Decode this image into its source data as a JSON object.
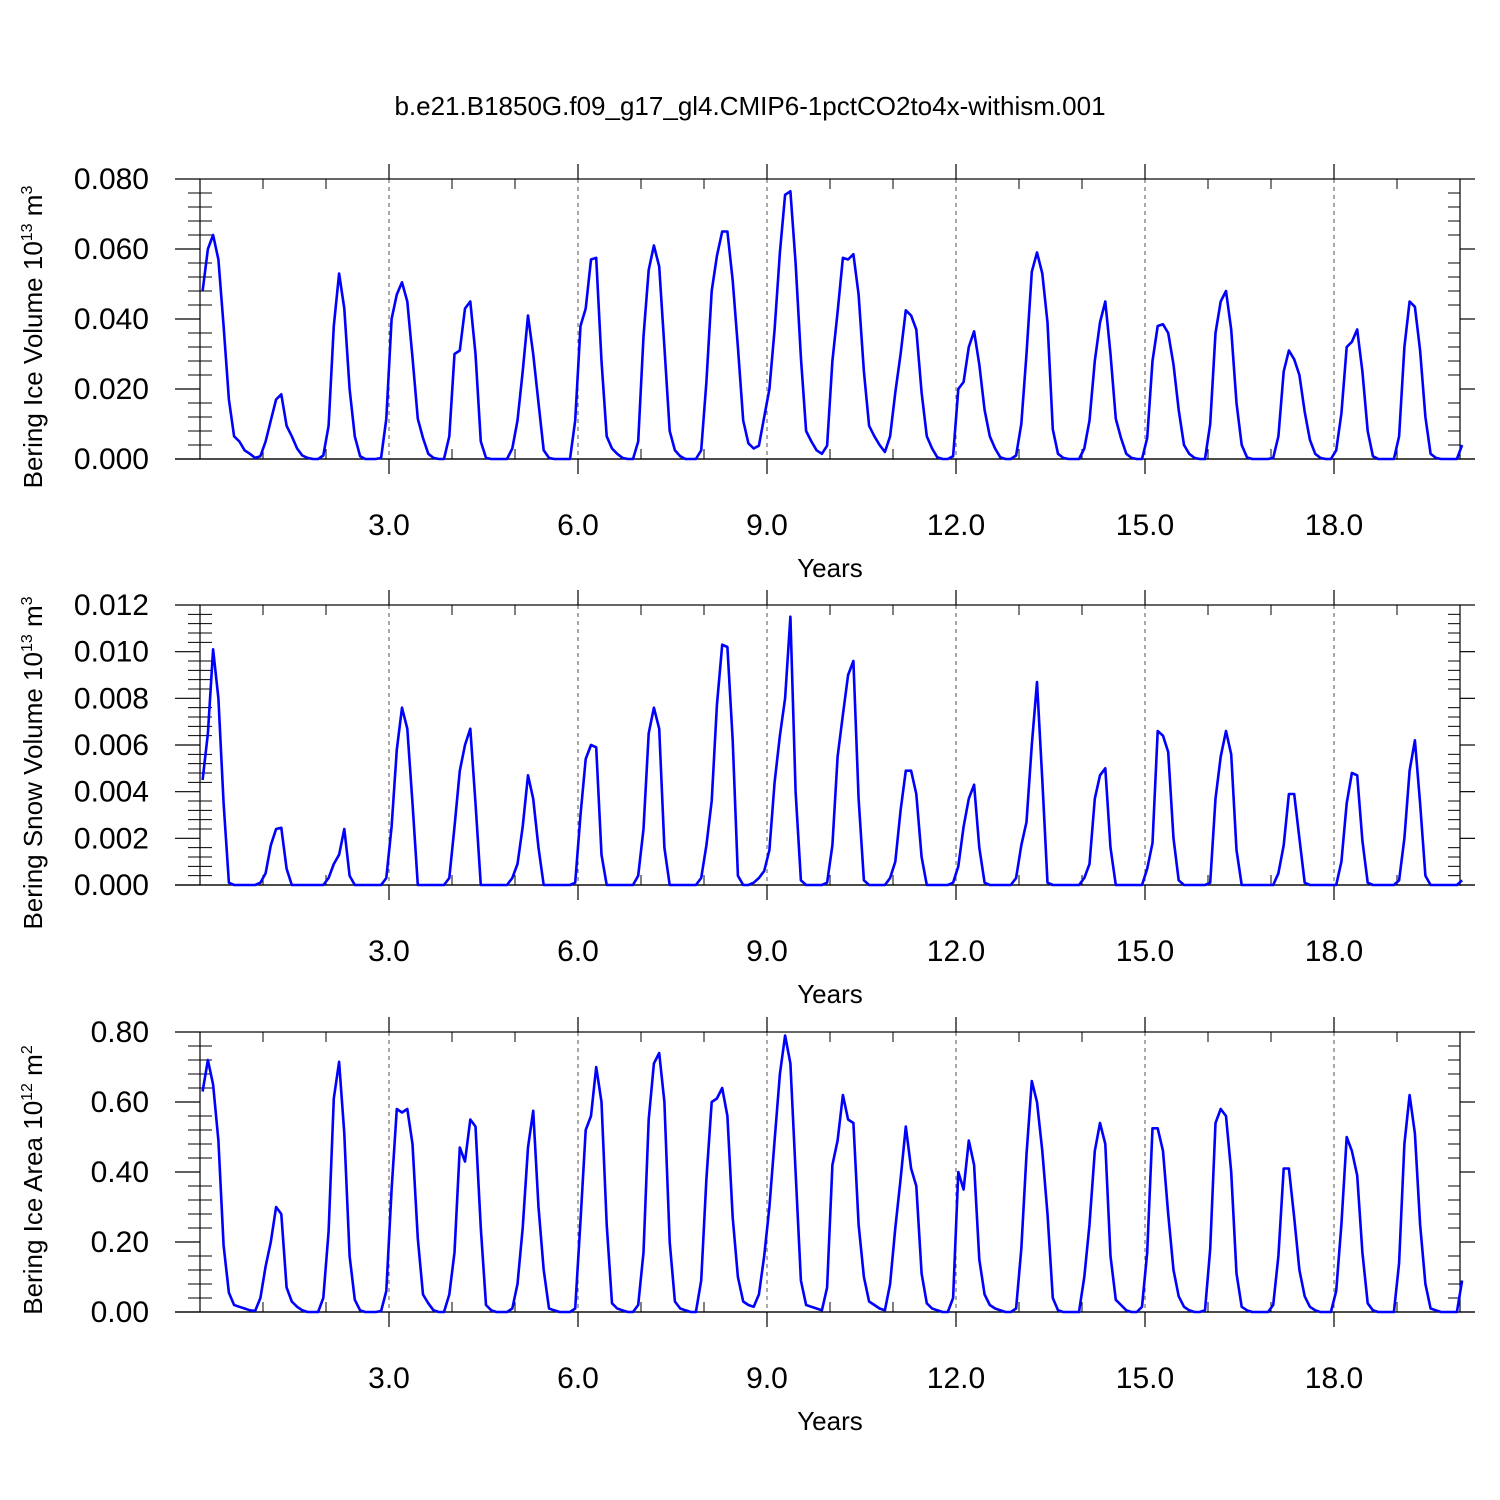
{
  "figure_title": "b.e21.B1850G.f09_g17_gl4.CMIP6-1pctCO2to4x-withism.001",
  "line_color": "#0000ff",
  "chart_data": [
    {
      "type": "line",
      "ylabel": "Bering Ice Volume 10",
      "ylabel_exp": "13",
      "ylabel_unit": " m",
      "ylabel_unit_exp": "3",
      "xlabel": "Years",
      "xlim": [
        0,
        20
      ],
      "ylim": [
        0,
        0.08
      ],
      "x_ticks": [
        3,
        6,
        9,
        12,
        15,
        18
      ],
      "x_tick_labels": [
        "3.0",
        "6.0",
        "9.0",
        "12.0",
        "15.0",
        "18.0"
      ],
      "y_ticks": [
        0,
        0.02,
        0.04,
        0.06,
        0.08
      ],
      "y_tick_labels": [
        "0.000",
        "0.020",
        "0.040",
        "0.060",
        "0.080"
      ],
      "grid": "dashed vertical at major x ticks",
      "series": [
        {
          "start_x": 0.0417,
          "step": 0.0833,
          "values": [
            0.048,
            0.06,
            0.064,
            0.057,
            0.038,
            0.017,
            0.0065,
            0.005,
            0.0025,
            0.0015,
            0.0003,
            0.0008,
            0.005,
            0.011,
            0.017,
            0.0185,
            0.0095,
            0.0065,
            0.003,
            0.001,
            0.0003,
            0.0,
            0.0,
            0.001,
            0.0095,
            0.038,
            0.053,
            0.043,
            0.02,
            0.0065,
            0.0008,
            0.0,
            0.0,
            0.0,
            0.0003,
            0.0115,
            0.04,
            0.047,
            0.0505,
            0.045,
            0.029,
            0.0115,
            0.006,
            0.0015,
            0.0003,
            0.0,
            0.0,
            0.0065,
            0.03,
            0.031,
            0.043,
            0.045,
            0.03,
            0.005,
            0.0003,
            0.0,
            0.0,
            0.0,
            0.0,
            0.003,
            0.011,
            0.025,
            0.041,
            0.03,
            0.016,
            0.0025,
            0.0003,
            0.0,
            0.0,
            0.0,
            0.0,
            0.011,
            0.038,
            0.043,
            0.057,
            0.0575,
            0.028,
            0.0065,
            0.003,
            0.0015,
            0.0003,
            0.0,
            0.0,
            0.005,
            0.035,
            0.054,
            0.061,
            0.055,
            0.032,
            0.008,
            0.0025,
            0.0008,
            0.0,
            0.0,
            0.0,
            0.0025,
            0.022,
            0.048,
            0.058,
            0.065,
            0.065,
            0.051,
            0.032,
            0.011,
            0.0045,
            0.003,
            0.0038,
            0.012,
            0.02,
            0.037,
            0.059,
            0.0755,
            0.0765,
            0.056,
            0.029,
            0.008,
            0.005,
            0.0025,
            0.0015,
            0.0038,
            0.028,
            0.042,
            0.0575,
            0.057,
            0.0585,
            0.047,
            0.025,
            0.0095,
            0.0065,
            0.004,
            0.002,
            0.0065,
            0.019,
            0.03,
            0.0425,
            0.041,
            0.037,
            0.019,
            0.0065,
            0.003,
            0.0005,
            0.0,
            0.0,
            0.0008,
            0.02,
            0.022,
            0.032,
            0.0365,
            0.027,
            0.014,
            0.0065,
            0.003,
            0.0005,
            0.0,
            0.0,
            0.001,
            0.01,
            0.03,
            0.0535,
            0.059,
            0.053,
            0.039,
            0.0085,
            0.0015,
            0.0003,
            0.0,
            0.0,
            0.0,
            0.003,
            0.011,
            0.028,
            0.039,
            0.045,
            0.03,
            0.0115,
            0.006,
            0.0015,
            0.0003,
            0.0,
            0.0,
            0.006,
            0.028,
            0.038,
            0.0385,
            0.036,
            0.027,
            0.014,
            0.004,
            0.0015,
            0.0003,
            0.0,
            0.0,
            0.01,
            0.036,
            0.045,
            0.048,
            0.037,
            0.016,
            0.004,
            0.0005,
            0.0,
            0.0,
            0.0,
            0.0,
            0.0003,
            0.0065,
            0.025,
            0.031,
            0.0285,
            0.024,
            0.0135,
            0.0055,
            0.0015,
            0.0003,
            0.0,
            0.0,
            0.0025,
            0.013,
            0.032,
            0.0335,
            0.037,
            0.025,
            0.008,
            0.0008,
            0.0,
            0.0,
            0.0,
            0.0,
            0.0065,
            0.032,
            0.045,
            0.0435,
            0.031,
            0.012,
            0.0015,
            0.0003,
            0.0,
            0.0,
            0.0,
            0.0,
            0.004
          ]
        }
      ]
    },
    {
      "type": "line",
      "ylabel": "Bering Snow Volume 10",
      "ylabel_exp": "13",
      "ylabel_unit": " m",
      "ylabel_unit_exp": "3",
      "xlabel": "Years",
      "xlim": [
        0,
        20
      ],
      "ylim": [
        0,
        0.012
      ],
      "x_ticks": [
        3,
        6,
        9,
        12,
        15,
        18
      ],
      "x_tick_labels": [
        "3.0",
        "6.0",
        "9.0",
        "12.0",
        "15.0",
        "18.0"
      ],
      "y_ticks": [
        0,
        0.002,
        0.004,
        0.006,
        0.008,
        0.01,
        0.012
      ],
      "y_tick_labels": [
        "0.000",
        "0.002",
        "0.004",
        "0.006",
        "0.008",
        "0.010",
        "0.012"
      ],
      "grid": "dashed vertical at major x ticks",
      "series": [
        {
          "start_x": 0.0417,
          "step": 0.0833,
          "values": [
            0.0045,
            0.0065,
            0.0101,
            0.008,
            0.0035,
            0.0001,
            0.0,
            0.0,
            0.0,
            0.0,
            0.0,
            0.0001,
            0.0005,
            0.0017,
            0.0024,
            0.00245,
            0.0007,
            0.0,
            0.0,
            0.0,
            0.0,
            0.0,
            0.0,
            0.0,
            0.0003,
            0.0009,
            0.0013,
            0.0024,
            0.0004,
            0.0,
            0.0,
            0.0,
            0.0,
            0.0,
            0.0,
            0.0003,
            0.0025,
            0.0058,
            0.0076,
            0.0067,
            0.0035,
            0.0,
            0.0,
            0.0,
            0.0,
            0.0,
            0.0,
            0.0003,
            0.0025,
            0.0049,
            0.006,
            0.0067,
            0.0035,
            0.0,
            0.0,
            0.0,
            0.0,
            0.0,
            0.0,
            0.0003,
            0.0009,
            0.0025,
            0.0047,
            0.0037,
            0.0016,
            0.0,
            0.0,
            0.0,
            0.0,
            0.0,
            0.0,
            0.0001,
            0.003,
            0.0054,
            0.006,
            0.0059,
            0.0013,
            0.0,
            0.0,
            0.0,
            0.0,
            0.0,
            0.0,
            0.0004,
            0.0024,
            0.0065,
            0.0076,
            0.0067,
            0.0016,
            0.0,
            0.0,
            0.0,
            0.0,
            0.0,
            0.0,
            0.0003,
            0.0017,
            0.0036,
            0.0077,
            0.0103,
            0.0102,
            0.0062,
            0.0004,
            0.0,
            0.0,
            0.0001,
            0.0003,
            0.0006,
            0.0015,
            0.0044,
            0.0064,
            0.008,
            0.0115,
            0.004,
            0.0002,
            0.0,
            0.0,
            0.0,
            0.0,
            0.0001,
            0.0017,
            0.0055,
            0.0073,
            0.009,
            0.0096,
            0.0037,
            0.0002,
            0.0,
            0.0,
            0.0,
            0.0,
            0.0003,
            0.001,
            0.0032,
            0.0049,
            0.0049,
            0.0039,
            0.0012,
            0.0,
            0.0,
            0.0,
            0.0,
            0.0,
            0.0001,
            0.0008,
            0.0025,
            0.0037,
            0.0043,
            0.0016,
            0.0001,
            0.0,
            0.0,
            0.0,
            0.0,
            0.0,
            0.0003,
            0.0017,
            0.0027,
            0.006,
            0.0087,
            0.0045,
            0.0001,
            0.0,
            0.0,
            0.0,
            0.0,
            0.0,
            0.0,
            0.0003,
            0.0009,
            0.0037,
            0.0047,
            0.005,
            0.0016,
            0.0,
            0.0,
            0.0,
            0.0,
            0.0,
            0.0,
            0.0007,
            0.0018,
            0.0066,
            0.0064,
            0.0057,
            0.002,
            0.0002,
            0.0,
            0.0,
            0.0,
            0.0,
            0.0,
            0.0001,
            0.0037,
            0.0055,
            0.0066,
            0.0056,
            0.0015,
            0.0,
            0.0,
            0.0,
            0.0,
            0.0,
            0.0,
            0.0,
            0.0005,
            0.0017,
            0.0039,
            0.0039,
            0.002,
            0.0001,
            0.0,
            0.0,
            0.0,
            0.0,
            0.0,
            0.0,
            0.001,
            0.0035,
            0.0048,
            0.0047,
            0.0019,
            0.0001,
            0.0,
            0.0,
            0.0,
            0.0,
            0.0,
            0.0002,
            0.002,
            0.0049,
            0.0062,
            0.0035,
            0.0004,
            0.0,
            0.0,
            0.0,
            0.0,
            0.0,
            0.0,
            0.0002
          ]
        }
      ]
    },
    {
      "type": "line",
      "ylabel": "Bering Ice Area 10",
      "ylabel_exp": "12",
      "ylabel_unit": " m",
      "ylabel_unit_exp": "2",
      "xlabel": "Years",
      "xlim": [
        0,
        20
      ],
      "ylim": [
        0,
        0.8
      ],
      "x_ticks": [
        3,
        6,
        9,
        12,
        15,
        18
      ],
      "x_tick_labels": [
        "3.0",
        "6.0",
        "9.0",
        "12.0",
        "15.0",
        "18.0"
      ],
      "y_ticks": [
        0,
        0.2,
        0.4,
        0.6,
        0.8
      ],
      "y_tick_labels": [
        "0.00",
        "0.20",
        "0.40",
        "0.60",
        "0.80"
      ],
      "grid": "dashed vertical at major x ticks",
      "series": [
        {
          "start_x": 0.0417,
          "step": 0.0833,
          "values": [
            0.63,
            0.72,
            0.65,
            0.49,
            0.19,
            0.055,
            0.02,
            0.015,
            0.01,
            0.005,
            0.003,
            0.04,
            0.13,
            0.2,
            0.3,
            0.28,
            0.07,
            0.03,
            0.015,
            0.005,
            0.0,
            0.0,
            0.0,
            0.04,
            0.23,
            0.61,
            0.715,
            0.51,
            0.16,
            0.035,
            0.005,
            0.0,
            0.0,
            0.0,
            0.003,
            0.06,
            0.35,
            0.58,
            0.57,
            0.58,
            0.48,
            0.21,
            0.05,
            0.025,
            0.005,
            0.0,
            0.0,
            0.05,
            0.17,
            0.47,
            0.43,
            0.55,
            0.53,
            0.24,
            0.02,
            0.005,
            0.0,
            0.0,
            0.0,
            0.01,
            0.08,
            0.24,
            0.47,
            0.575,
            0.3,
            0.12,
            0.01,
            0.005,
            0.0,
            0.0,
            0.0,
            0.01,
            0.26,
            0.52,
            0.56,
            0.7,
            0.6,
            0.25,
            0.025,
            0.01,
            0.005,
            0.0,
            0.0,
            0.02,
            0.17,
            0.55,
            0.71,
            0.74,
            0.6,
            0.2,
            0.03,
            0.01,
            0.005,
            0.0,
            0.0,
            0.09,
            0.38,
            0.6,
            0.61,
            0.64,
            0.56,
            0.27,
            0.1,
            0.03,
            0.02,
            0.015,
            0.05,
            0.16,
            0.3,
            0.49,
            0.68,
            0.79,
            0.71,
            0.4,
            0.09,
            0.02,
            0.015,
            0.01,
            0.005,
            0.07,
            0.42,
            0.49,
            0.62,
            0.55,
            0.54,
            0.25,
            0.1,
            0.03,
            0.02,
            0.01,
            0.005,
            0.08,
            0.24,
            0.38,
            0.53,
            0.41,
            0.36,
            0.11,
            0.025,
            0.01,
            0.005,
            0.0,
            0.0,
            0.04,
            0.4,
            0.35,
            0.49,
            0.42,
            0.15,
            0.05,
            0.02,
            0.01,
            0.005,
            0.0,
            0.0,
            0.01,
            0.18,
            0.45,
            0.66,
            0.6,
            0.46,
            0.28,
            0.04,
            0.005,
            0.0,
            0.0,
            0.0,
            0.0,
            0.1,
            0.25,
            0.46,
            0.54,
            0.48,
            0.16,
            0.035,
            0.02,
            0.005,
            0.0,
            0.0,
            0.015,
            0.17,
            0.525,
            0.525,
            0.46,
            0.28,
            0.12,
            0.045,
            0.015,
            0.005,
            0.0,
            0.0,
            0.005,
            0.18,
            0.54,
            0.58,
            0.56,
            0.4,
            0.11,
            0.015,
            0.005,
            0.0,
            0.0,
            0.0,
            0.0,
            0.02,
            0.16,
            0.41,
            0.41,
            0.27,
            0.12,
            0.045,
            0.015,
            0.005,
            0.0,
            0.0,
            0.0,
            0.06,
            0.25,
            0.5,
            0.46,
            0.39,
            0.17,
            0.025,
            0.005,
            0.0,
            0.0,
            0.0,
            0.0,
            0.14,
            0.48,
            0.62,
            0.51,
            0.25,
            0.08,
            0.01,
            0.005,
            0.0,
            0.0,
            0.0,
            0.0,
            0.09
          ]
        }
      ]
    }
  ]
}
